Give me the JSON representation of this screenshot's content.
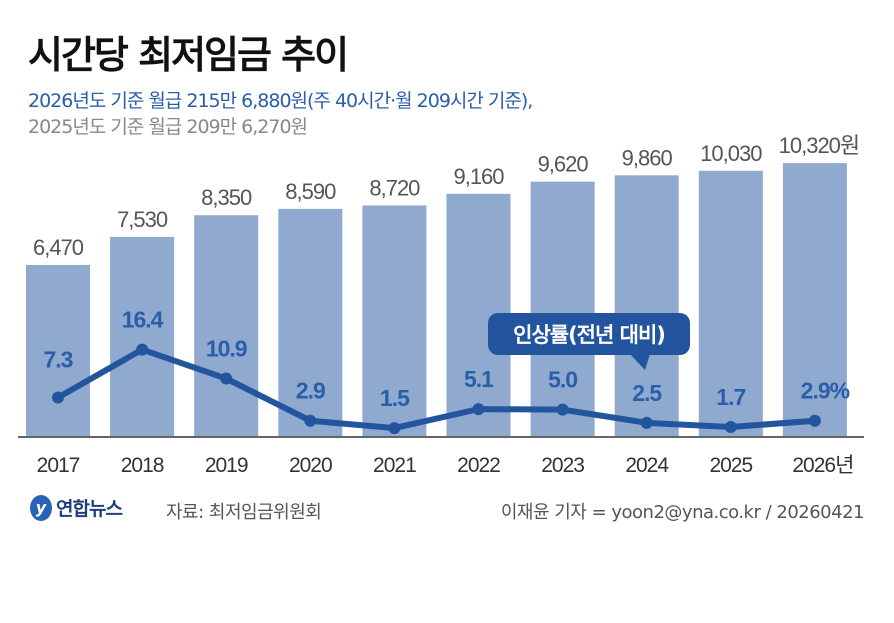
{
  "chart_data": {
    "type": "bar",
    "title": "시간당 최저임금 추이",
    "subtitle_lines": [
      "2026년도 기준 월급 215만 6,880원(주 40시간·월 209시간 기준),",
      "2025년도 기준 월급 209만 6,270원"
    ],
    "categories": [
      "2017",
      "2018",
      "2019",
      "2020",
      "2021",
      "2022",
      "2023",
      "2024",
      "2025",
      "2026년"
    ],
    "ylim": [
      0,
      11000
    ],
    "grid": false,
    "series": [
      {
        "type": "bar",
        "values": [
          6470,
          7530,
          8350,
          8590,
          8720,
          9160,
          9620,
          9860,
          10030,
          10320
        ],
        "labels": [
          "6,470",
          "7,530",
          "8,350",
          "8,590",
          "8,720",
          "9,160",
          "9,620",
          "9,860",
          "10,030",
          "10,320원"
        ],
        "color": "#8fa9cf"
      },
      {
        "type": "line",
        "name": "인상률(전년 대비)",
        "values": [
          7.3,
          16.4,
          10.9,
          2.9,
          1.5,
          5.1,
          5.0,
          2.5,
          1.7,
          2.9
        ],
        "labels": [
          "7.3",
          "16.4",
          "10.9",
          "2.9",
          "1.5",
          "5.1",
          "5.0",
          "2.5",
          "1.7",
          "2.9%"
        ],
        "color": "#23559f"
      }
    ],
    "callout": "인상률(전년 대비)"
  },
  "footer": {
    "logo": "연합뉴스",
    "source": "자료: 최저임금위원회",
    "credit": "이재윤 기자 = yoon2@yna.co.kr / 20260421"
  }
}
